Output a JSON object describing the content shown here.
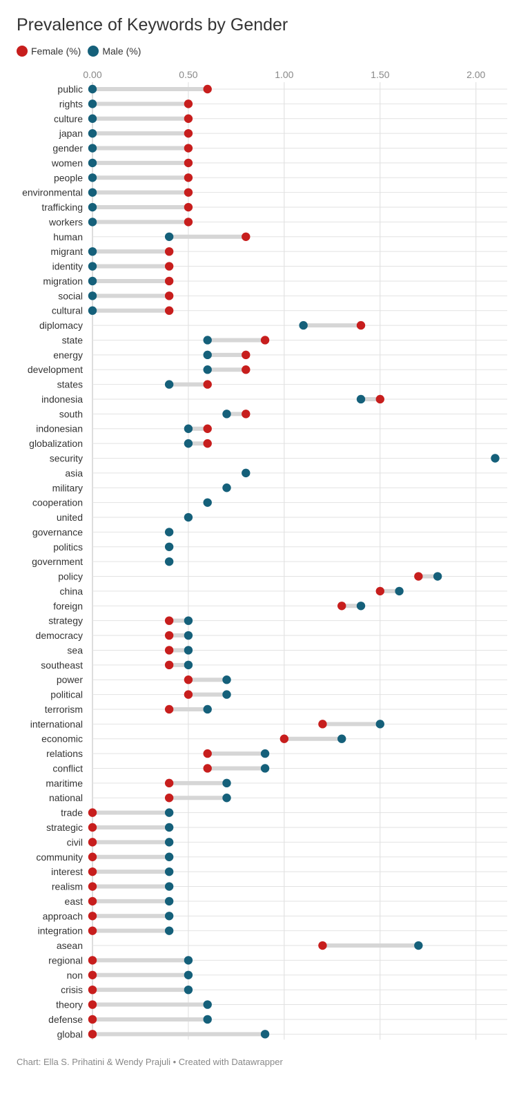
{
  "chart_data": {
    "type": "dumbbell",
    "title": "Prevalence of Keywords by Gender",
    "series": [
      {
        "name": "Female (%)",
        "color": "#c71e1d",
        "values": [
          0.6,
          0.5,
          0.5,
          0.5,
          0.5,
          0.5,
          0.5,
          0.5,
          0.5,
          0.5,
          0.8,
          0.4,
          0.4,
          0.4,
          0.4,
          0.4,
          1.4,
          0.9,
          0.8,
          0.8,
          0.6,
          1.5,
          0.8,
          0.6,
          0.6,
          null,
          null,
          null,
          null,
          null,
          null,
          null,
          null,
          1.7,
          1.5,
          1.3,
          0.4,
          0.4,
          0.4,
          0.4,
          0.5,
          0.5,
          0.4,
          1.2,
          1.0,
          0.6,
          0.6,
          0.4,
          0.4,
          0,
          0,
          0,
          0,
          0,
          0,
          0,
          0,
          0,
          1.2,
          0,
          0,
          0,
          0,
          0,
          0
        ]
      },
      {
        "name": "Male (%)",
        "color": "#15607a",
        "values": [
          0,
          0,
          0,
          0,
          0,
          0,
          0,
          0,
          0,
          0,
          0.4,
          0,
          0,
          0,
          0,
          0,
          1.1,
          0.6,
          0.6,
          0.6,
          0.4,
          1.4,
          0.7,
          0.5,
          0.5,
          2.1,
          0.8,
          0.7,
          0.6,
          0.5,
          0.4,
          0.4,
          0.4,
          1.8,
          1.6,
          1.4,
          0.5,
          0.5,
          0.5,
          0.5,
          0.7,
          0.7,
          0.6,
          1.5,
          1.3,
          0.9,
          0.9,
          0.7,
          0.7,
          0.4,
          0.4,
          0.4,
          0.4,
          0.4,
          0.4,
          0.4,
          0.4,
          0.4,
          1.7,
          0.5,
          0.5,
          0.5,
          0.6,
          0.6,
          0.9
        ]
      }
    ],
    "categories": [
      "public",
      "rights",
      "culture",
      "japan",
      "gender",
      "women",
      "people",
      "environmental",
      "trafficking",
      "workers",
      "human",
      "migrant",
      "identity",
      "migration",
      "social",
      "cultural",
      "diplomacy",
      "state",
      "energy",
      "development",
      "states",
      "indonesia",
      "south",
      "indonesian",
      "globalization",
      "security",
      "asia",
      "military",
      "cooperation",
      "united",
      "governance",
      "politics",
      "government",
      "policy",
      "china",
      "foreign",
      "strategy",
      "democracy",
      "sea",
      "southeast",
      "power",
      "political",
      "terrorism",
      "international",
      "economic",
      "relations",
      "conflict",
      "maritime",
      "national",
      "trade",
      "strategic",
      "civil",
      "community",
      "interest",
      "realism",
      "east",
      "approach",
      "integration",
      "asean",
      "regional",
      "non",
      "crisis",
      "theory",
      "defense",
      "global"
    ],
    "xlim": [
      0,
      2.1
    ],
    "xticks": [
      0,
      0.5,
      1.0,
      1.5,
      2.0
    ],
    "xtick_labels": [
      "0.00",
      "0.50",
      "1.00",
      "1.50",
      "2.00"
    ],
    "grid": true,
    "legend_position": "top-left"
  },
  "footer": "Chart: Ella S. Prihatini & Wendy Prajuli • Created with Datawrapper"
}
